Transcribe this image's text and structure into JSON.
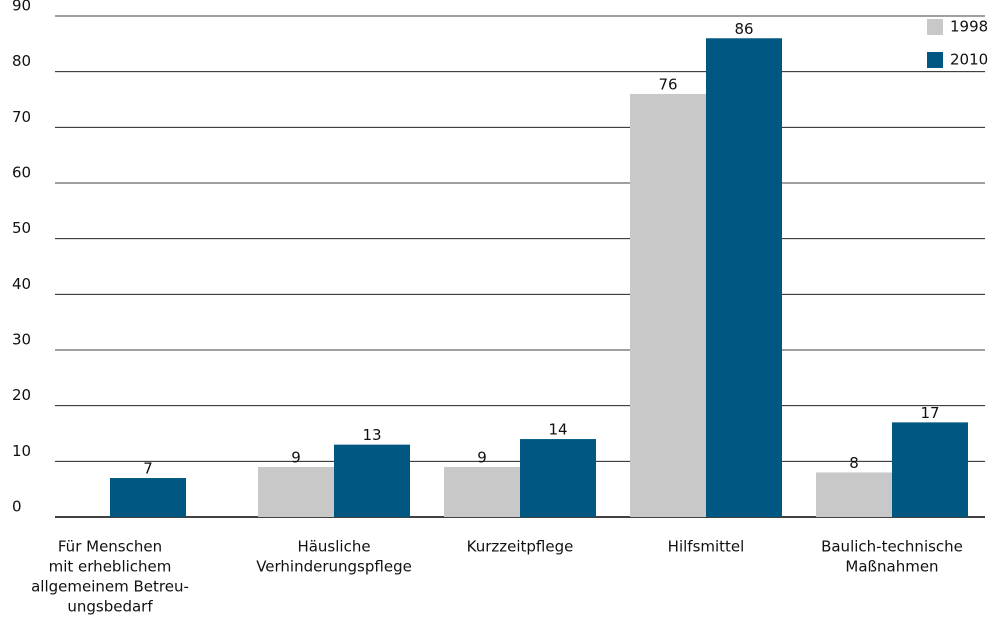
{
  "chart_data": {
    "type": "bar",
    "categories": [
      [
        "Für Menschen",
        "mit erheblichem",
        "allgemeinem Betreu-",
        "ungsbedarf"
      ],
      [
        "Häusliche",
        "Verhinderungspflege"
      ],
      [
        "Kurzzeitpflege"
      ],
      [
        "Hilfsmittel"
      ],
      [
        "Baulich-technische",
        "Maßnahmen"
      ]
    ],
    "series": [
      {
        "name": "1998",
        "color": "#c8c8c8",
        "values": [
          null,
          9,
          9,
          76,
          8
        ]
      },
      {
        "name": "2010",
        "color": "#005882",
        "values": [
          7,
          13,
          14,
          86,
          17
        ]
      }
    ],
    "ylim": [
      0,
      90
    ],
    "yticks": [
      0,
      10,
      20,
      30,
      40,
      50,
      60,
      70,
      80,
      90
    ],
    "grid": true,
    "legend": "top-right"
  }
}
